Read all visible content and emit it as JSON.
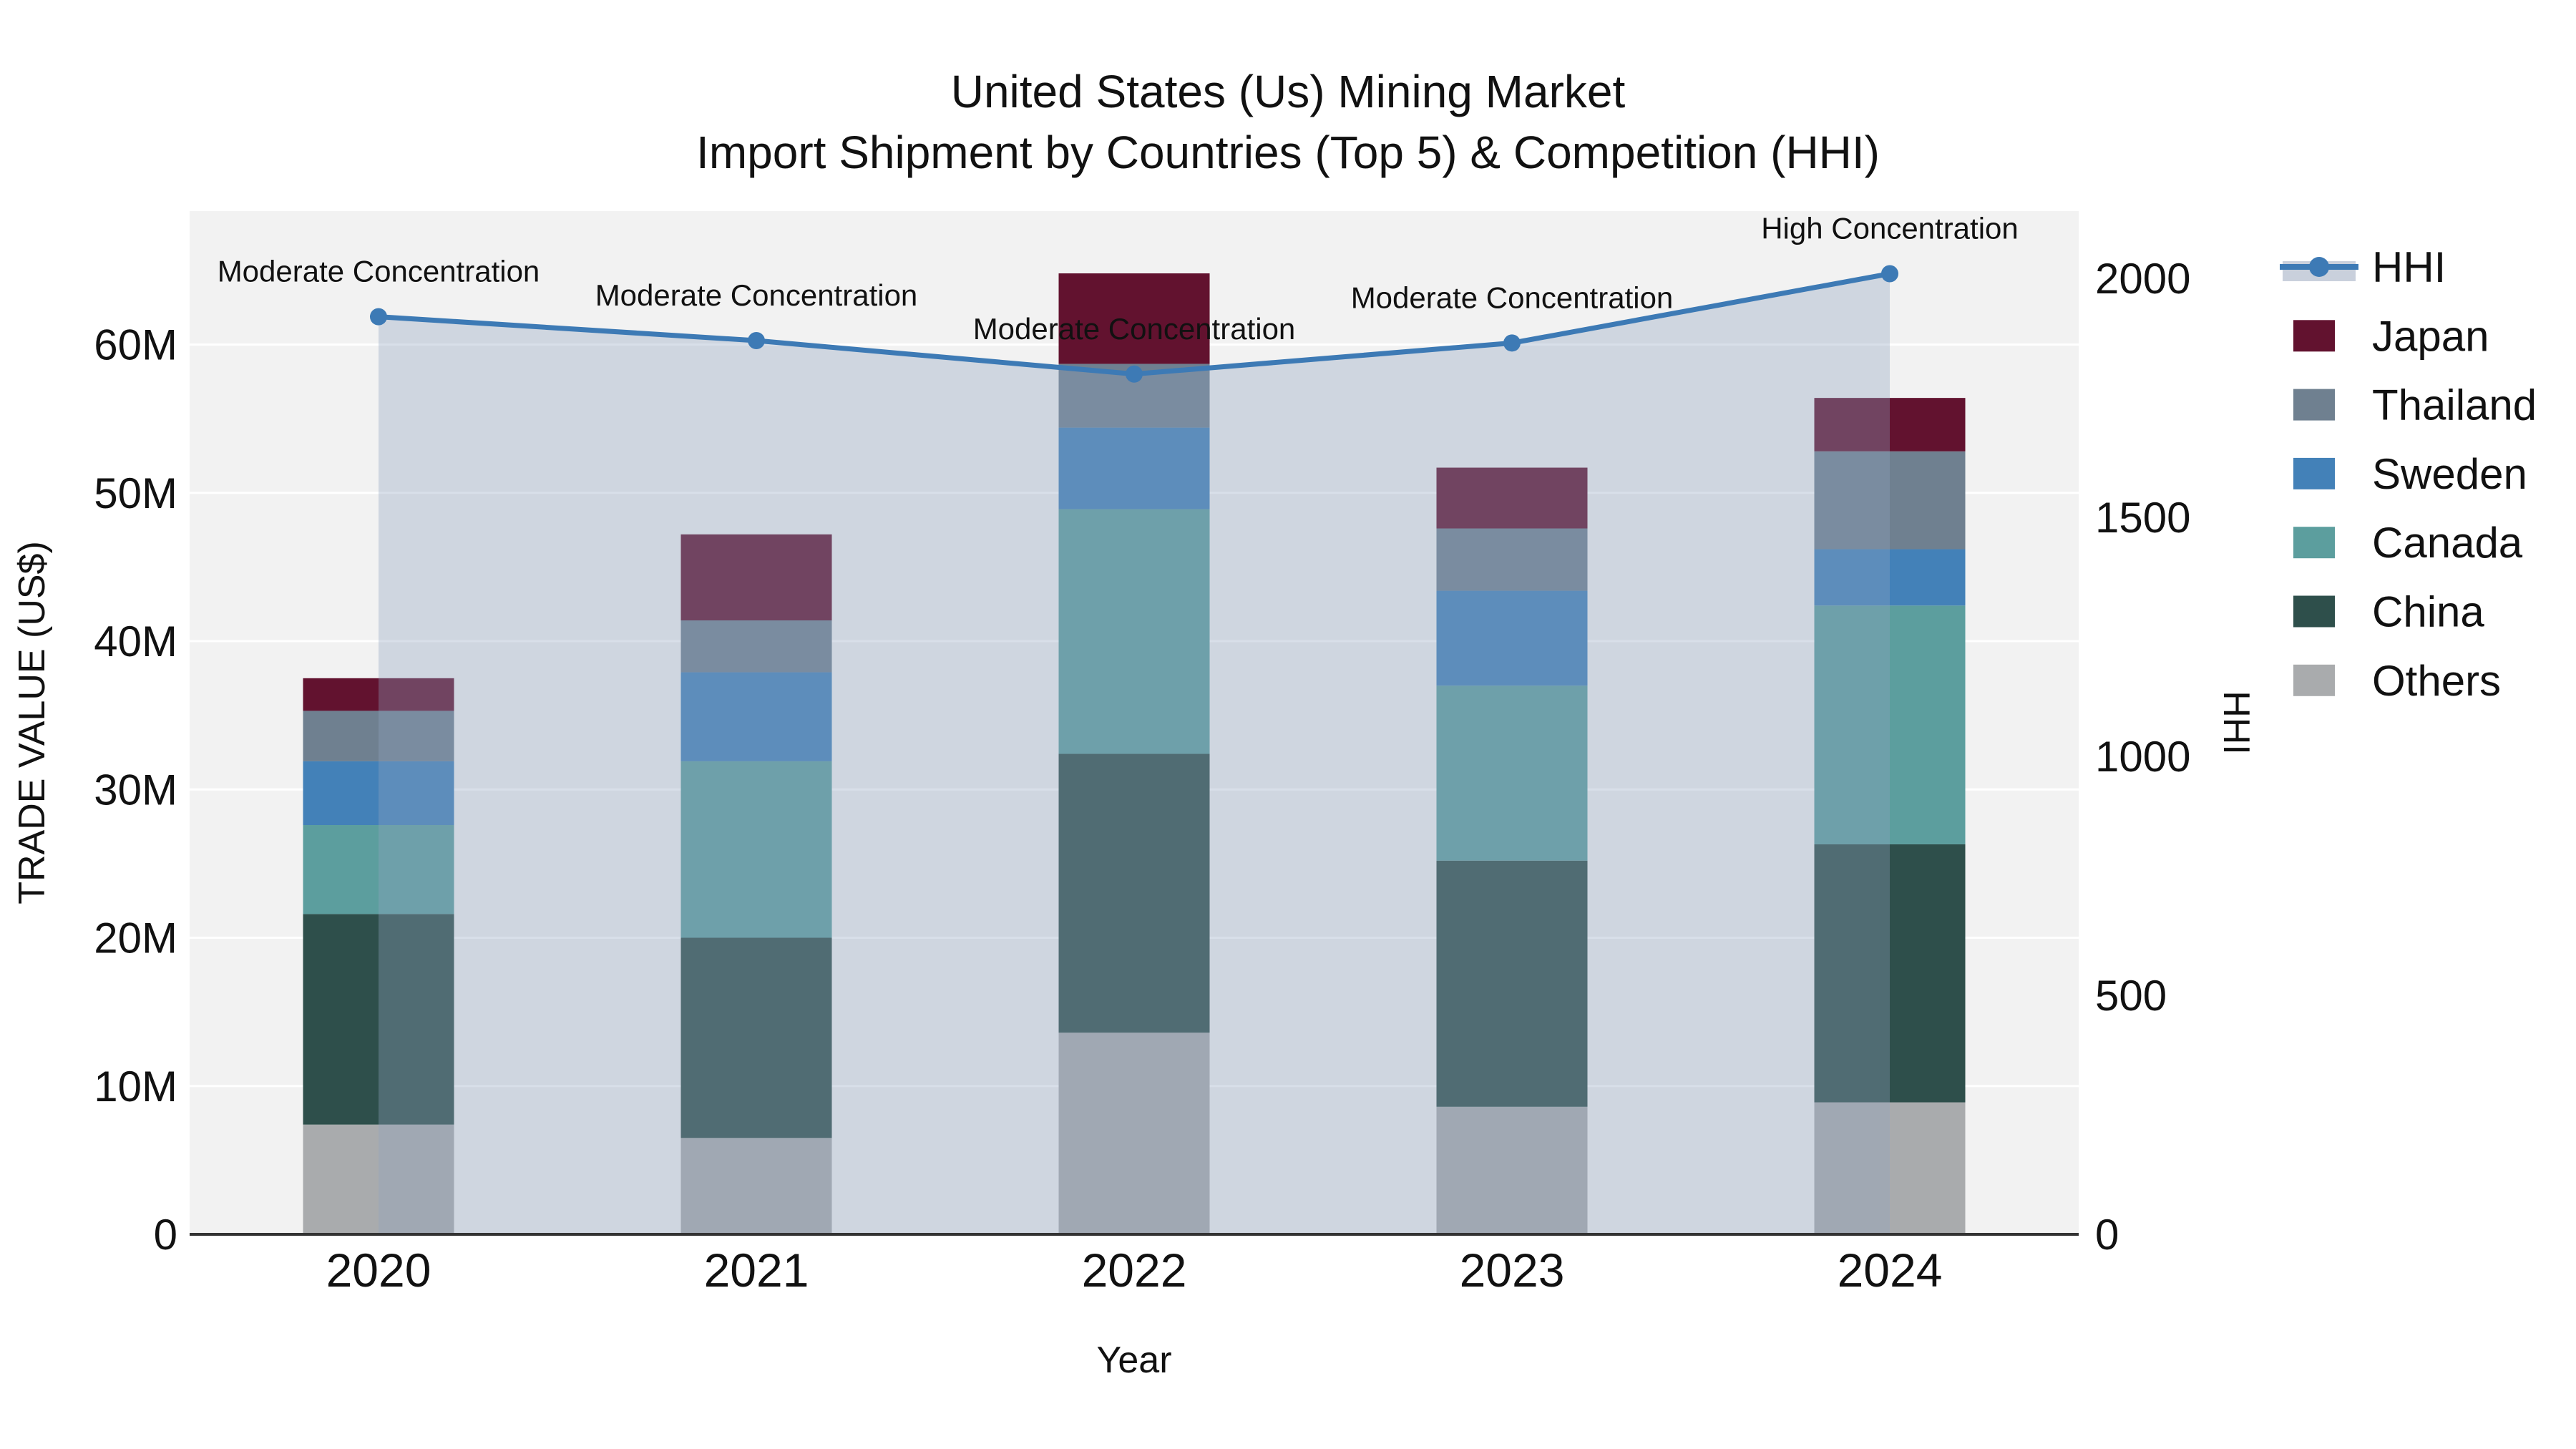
{
  "title": {
    "line1": "United States (Us) Mining Market",
    "line2": "Import Shipment by Countries (Top 5) & Competition (HHI)"
  },
  "axes": {
    "left_title": "TRADE VALUE (US$)",
    "right_title": "HHI",
    "x_title": "Year",
    "left_ticks": [
      {
        "value": 0,
        "label": "0"
      },
      {
        "value": 10,
        "label": "10M"
      },
      {
        "value": 20,
        "label": "20M"
      },
      {
        "value": 30,
        "label": "30M"
      },
      {
        "value": 40,
        "label": "40M"
      },
      {
        "value": 50,
        "label": "50M"
      },
      {
        "value": 60,
        "label": "60M"
      }
    ],
    "right_ticks": [
      {
        "value": 0,
        "label": "0"
      },
      {
        "value": 500,
        "label": "500"
      },
      {
        "value": 1000,
        "label": "1000"
      },
      {
        "value": 1500,
        "label": "1500"
      },
      {
        "value": 2000,
        "label": "2000"
      }
    ]
  },
  "chart_data": {
    "type": "bar+line",
    "title": "United States (Us) Mining Market — Import Shipment by Countries (Top 5) & Competition (HHI)",
    "xlabel": "Year",
    "ylabel_left": "TRADE VALUE (US$)",
    "ylabel_right": "HHI",
    "categories": [
      "2020",
      "2021",
      "2022",
      "2023",
      "2024"
    ],
    "stacked": true,
    "grid": true,
    "ylim_left": [
      0,
      69
    ],
    "ylim_right": [
      0,
      2141
    ],
    "unit_left": "millions US$",
    "series": [
      {
        "name": "Others",
        "color": "#a9abad",
        "values": [
          7.4,
          6.5,
          13.6,
          8.6,
          8.9
        ]
      },
      {
        "name": "China",
        "color": "#2e4f4b",
        "values": [
          14.2,
          13.5,
          18.8,
          16.6,
          17.4
        ]
      },
      {
        "name": "Canada",
        "color": "#5c9e9e",
        "values": [
          6.0,
          11.9,
          16.5,
          11.8,
          16.1
        ]
      },
      {
        "name": "Sweden",
        "color": "#4381b8",
        "values": [
          4.3,
          6.0,
          5.5,
          6.4,
          3.8
        ]
      },
      {
        "name": "Thailand",
        "color": "#6f8090",
        "values": [
          3.4,
          3.5,
          4.3,
          4.2,
          6.6
        ]
      },
      {
        "name": "Japan",
        "color": "#62122f",
        "values": [
          2.2,
          5.8,
          6.1,
          4.1,
          3.6
        ]
      }
    ],
    "bar_totals": [
      37.5,
      47.2,
      64.8,
      51.7,
      56.4
    ],
    "hhi": {
      "name": "HHI",
      "values": [
        1920,
        1870,
        1800,
        1865,
        2010
      ],
      "line_color": "#3d7ab5",
      "fill_color": "#8fa2c0",
      "fill_opacity": 0.35
    },
    "annotations": [
      {
        "year": "2020",
        "text": "Moderate Concentration"
      },
      {
        "year": "2021",
        "text": "Moderate Concentration"
      },
      {
        "year": "2022",
        "text": "Moderate Concentration"
      },
      {
        "year": "2023",
        "text": "Moderate Concentration"
      },
      {
        "year": "2024",
        "text": "High Concentration"
      }
    ],
    "legend_position": "right"
  },
  "legend": {
    "items": [
      {
        "label": "HHI",
        "type": "line",
        "color": "#3d7ab5",
        "band_color": "#c9d0dc"
      },
      {
        "label": "Japan",
        "type": "swatch",
        "color": "#62122f"
      },
      {
        "label": "Thailand",
        "type": "swatch",
        "color": "#6f8090"
      },
      {
        "label": "Sweden",
        "type": "swatch",
        "color": "#4381b8"
      },
      {
        "label": "Canada",
        "type": "swatch",
        "color": "#5c9e9e"
      },
      {
        "label": "China",
        "type": "swatch",
        "color": "#2e4f4b"
      },
      {
        "label": "Others",
        "type": "swatch",
        "color": "#a9abad"
      }
    ]
  },
  "colors": {
    "plot_background": "#f2f2f2",
    "gridline": "#ffffff",
    "axis_line": "#333333",
    "text": "#111111"
  }
}
